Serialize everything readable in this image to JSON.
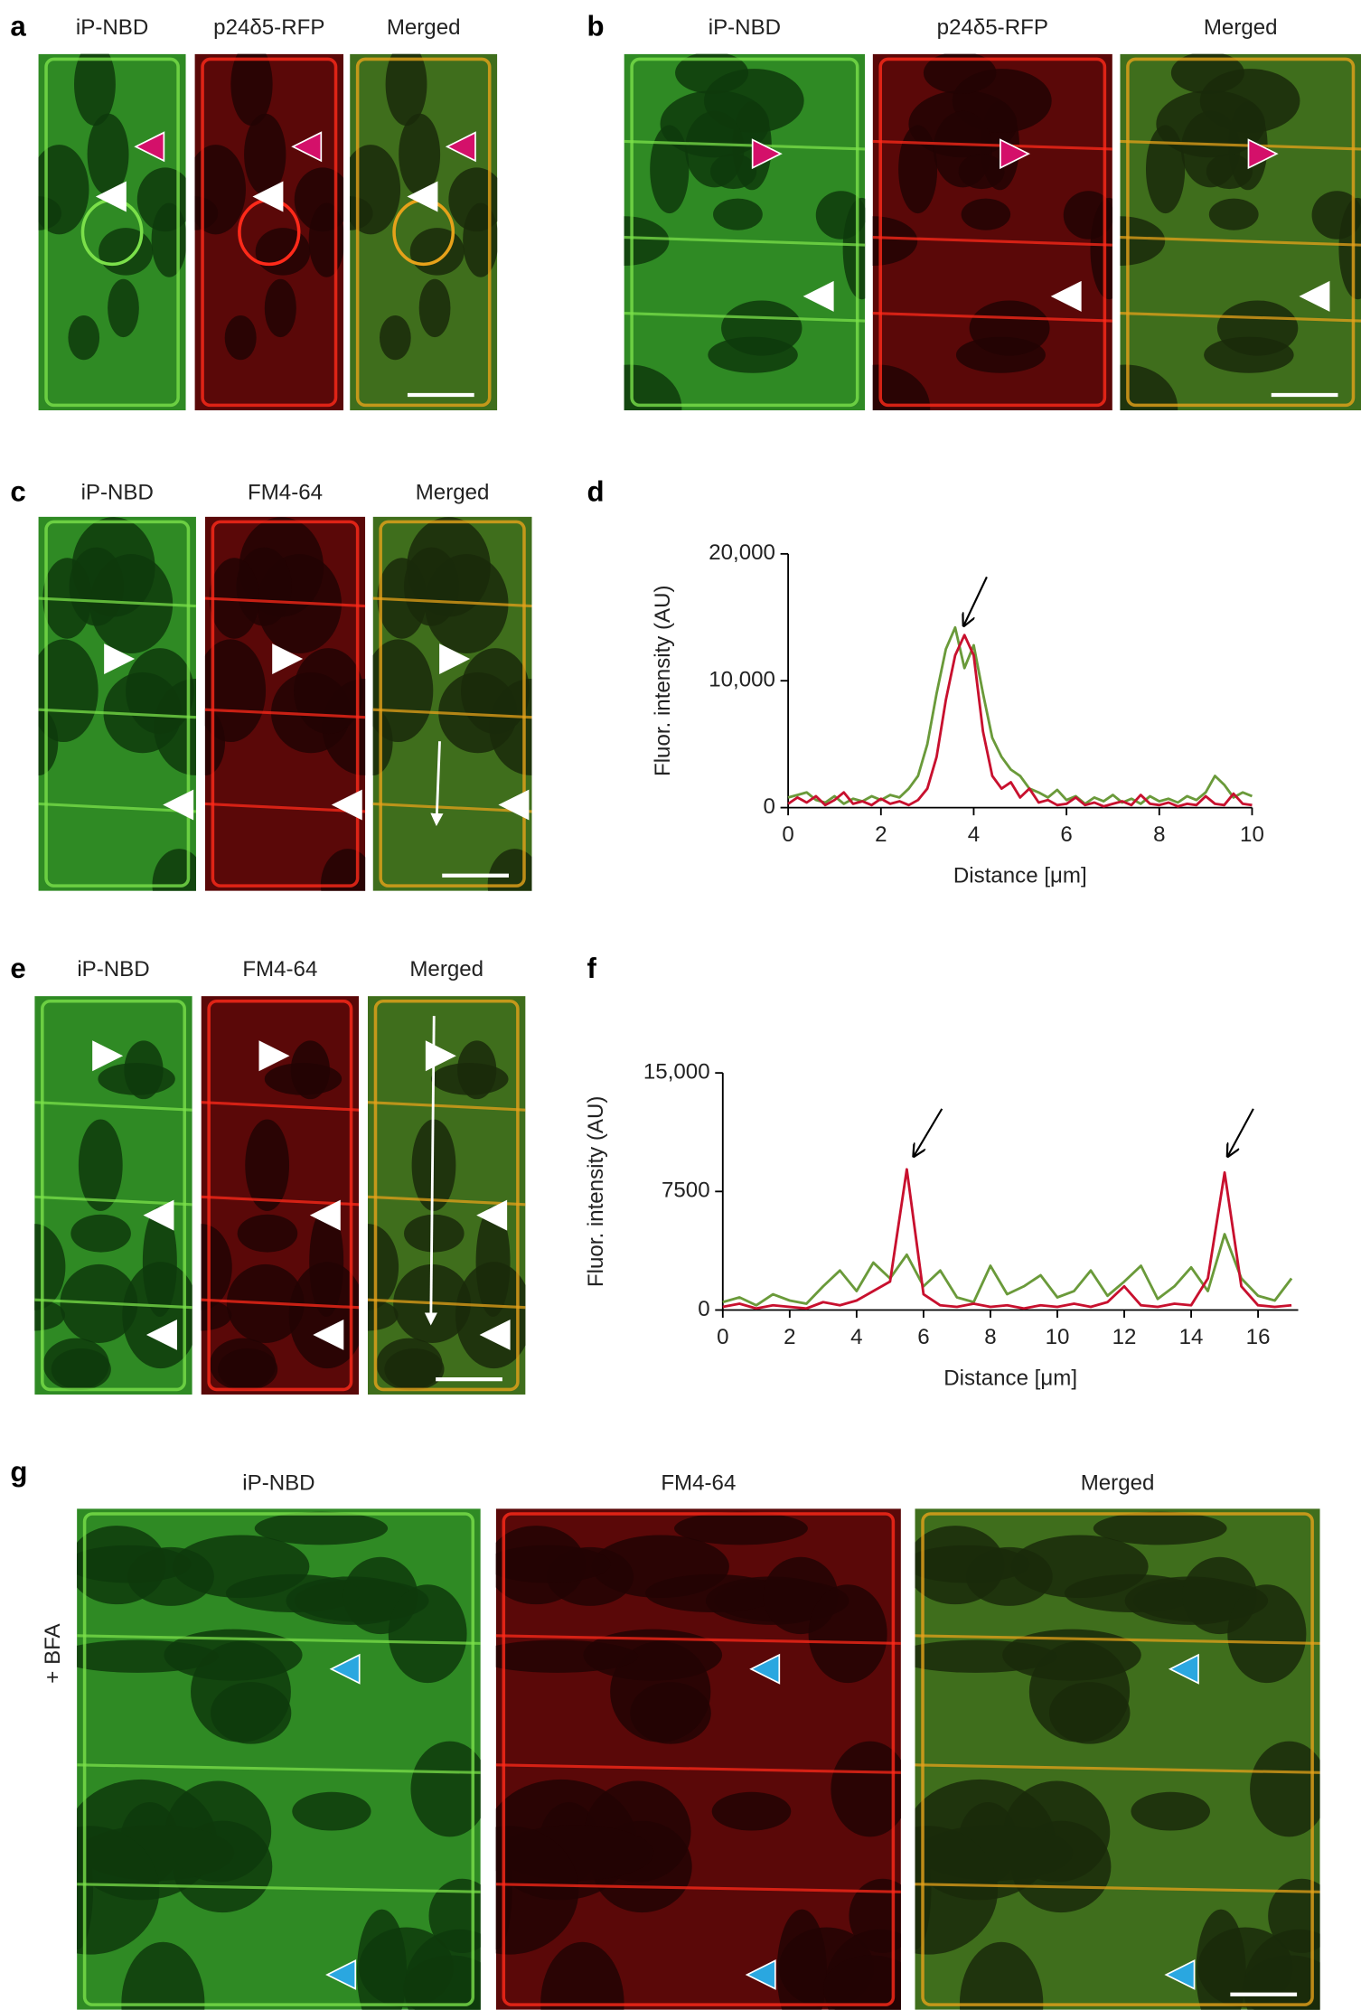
{
  "panels": [
    {
      "letter": "a",
      "labels": [
        "iP-NBD",
        "p24δ5-RFP",
        "Merged"
      ]
    },
    {
      "letter": "b",
      "labels": [
        "iP-NBD",
        "p24δ5-RFP",
        "Merged"
      ]
    },
    {
      "letter": "c",
      "labels": [
        "iP-NBD",
        "FM4-64",
        "Merged"
      ]
    },
    {
      "letter": "e",
      "labels": [
        "iP-NBD",
        "FM4-64",
        "Merged"
      ]
    },
    {
      "letter": "g",
      "labels": [
        "iP-NBD",
        "FM4-64",
        "Merged"
      ],
      "side_label": "+ BFA"
    }
  ],
  "chart_data": [
    {
      "type": "line",
      "letter": "d",
      "y_label": "Fluor. intensity (AU)",
      "x_label": "Distance [μm]",
      "xlim": [
        0,
        10
      ],
      "xticks": [
        0,
        2,
        4,
        6,
        8,
        10
      ],
      "ylim": [
        0,
        20000
      ],
      "yticks": [
        0,
        {
          "value": 10000,
          "label": "10,000"
        },
        {
          "value": 20000,
          "label": "20,000"
        }
      ],
      "x": [
        0,
        0.2,
        0.4,
        0.6,
        0.8,
        1,
        1.2,
        1.4,
        1.6,
        1.8,
        2,
        2.2,
        2.4,
        2.6,
        2.8,
        3,
        3.2,
        3.4,
        3.6,
        3.8,
        4,
        4.2,
        4.4,
        4.6,
        4.8,
        5,
        5.2,
        5.4,
        5.6,
        5.8,
        6,
        6.2,
        6.4,
        6.6,
        6.8,
        7,
        7.2,
        7.4,
        7.6,
        7.8,
        8,
        8.2,
        8.4,
        8.6,
        8.8,
        9,
        9.2,
        9.4,
        9.6,
        9.8,
        10
      ],
      "series": [
        {
          "color": "#6a9a3a",
          "values": [
            800,
            1000,
            1200,
            600,
            400,
            900,
            300,
            700,
            500,
            900,
            600,
            1000,
            800,
            1500,
            2500,
            5000,
            9000,
            12500,
            14200,
            11000,
            12800,
            9000,
            5500,
            4000,
            3000,
            2500,
            1500,
            1200,
            800,
            1400,
            600,
            900,
            300,
            800,
            500,
            1000,
            400,
            700,
            300,
            900,
            500,
            700,
            400,
            900,
            600,
            1200,
            2500,
            1800,
            800,
            1200,
            900
          ]
        },
        {
          "color": "#c8102e",
          "values": [
            300,
            800,
            400,
            900,
            200,
            600,
            1200,
            300,
            500,
            200,
            700,
            300,
            500,
            200,
            600,
            1500,
            4000,
            8500,
            12000,
            13600,
            12000,
            6000,
            2500,
            1500,
            2000,
            800,
            1500,
            400,
            600,
            200,
            300,
            800,
            200,
            400,
            100,
            300,
            500,
            200,
            1000,
            300,
            200,
            400,
            100,
            300,
            200,
            900,
            300,
            200,
            1100,
            300,
            200
          ]
        }
      ]
    },
    {
      "type": "line",
      "letter": "f",
      "y_label": "Fluor. intensity (AU)",
      "x_label": "Distance [μm]",
      "xlim": [
        0,
        17.2
      ],
      "xticks": [
        0,
        2,
        4,
        6,
        8,
        10,
        12,
        14,
        16
      ],
      "ylim": [
        0,
        15000
      ],
      "yticks": [
        0,
        7500,
        {
          "value": 15000,
          "label": "15,000"
        }
      ],
      "x": [
        0,
        0.5,
        1,
        1.5,
        2,
        2.5,
        3,
        3.5,
        4,
        4.5,
        5,
        5.5,
        6,
        6.5,
        7,
        7.5,
        8,
        8.5,
        9,
        9.5,
        10,
        10.5,
        11,
        11.5,
        12,
        12.5,
        13,
        13.5,
        14,
        14.5,
        15,
        15.5,
        16,
        16.5,
        17
      ],
      "series": [
        {
          "color": "#6a9a3a",
          "values": [
            500,
            800,
            300,
            1000,
            600,
            400,
            1500,
            2500,
            1200,
            3000,
            2000,
            3500,
            1500,
            2500,
            800,
            500,
            2800,
            1000,
            1500,
            2200,
            800,
            1200,
            2500,
            900,
            1800,
            2800,
            700,
            1500,
            2700,
            1200,
            4800,
            2000,
            900,
            600,
            2000
          ]
        },
        {
          "color": "#c8102e",
          "values": [
            200,
            400,
            100,
            300,
            200,
            100,
            500,
            300,
            600,
            1200,
            1800,
            8900,
            1000,
            300,
            200,
            400,
            200,
            300,
            100,
            300,
            200,
            400,
            200,
            500,
            1500,
            300,
            200,
            400,
            300,
            2000,
            8700,
            1500,
            300,
            200,
            300
          ]
        }
      ]
    }
  ]
}
